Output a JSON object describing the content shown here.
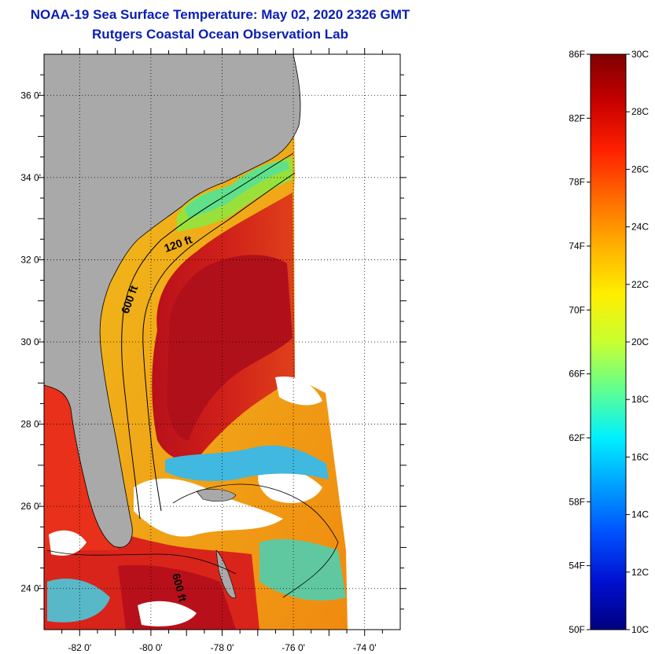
{
  "title": {
    "line1": "NOAA-19 Sea Surface Temperature:  May 02, 2020 2326 GMT",
    "line2": "Rutgers Coastal Ocean Observation Lab"
  },
  "map": {
    "longitude_labels": [
      "-82 0'",
      "-80 0'",
      "-78 0'",
      "-76 0'",
      "-74 0'"
    ],
    "latitude_labels": [
      "36 0'",
      "34 0'",
      "32 0'",
      "30 0'",
      "28 0'",
      "26 0'",
      "24 0'"
    ],
    "longitude_values": [
      -82,
      -80,
      -78,
      -76,
      -74
    ],
    "latitude_values": [
      36,
      34,
      32,
      30,
      28,
      26,
      24
    ],
    "lon_range": [
      -83,
      -73
    ],
    "lat_range": [
      23,
      37
    ],
    "contour_labels": [
      {
        "text": "120 ft",
        "lon": -79.2,
        "lat": 32.3,
        "rotate": -20
      },
      {
        "text": "600 ft",
        "lon": -80.5,
        "lat": 31.0,
        "rotate": -70
      },
      {
        "text": "600 ft",
        "lon": -79.3,
        "lat": 24.0,
        "rotate": 75
      }
    ],
    "colors": {
      "land": "#a9a9a9",
      "no_data": "#ffffff",
      "gulf_stream": "#c8141e",
      "shelf_warm": "#f0a818"
    }
  },
  "colorbar": {
    "fahrenheit_labels": [
      "86F",
      "82F",
      "78F",
      "74F",
      "70F",
      "66F",
      "62F",
      "58F",
      "54F",
      "50F"
    ],
    "celsius_labels": [
      "30C",
      "28C",
      "26C",
      "24C",
      "22C",
      "20C",
      "18C",
      "16C",
      "14C",
      "12C",
      "10C"
    ],
    "fahrenheit_range": [
      50,
      86
    ],
    "celsius_range": [
      10,
      30
    ],
    "gradient": [
      "#800000",
      "#c80000",
      "#ff2000",
      "#ff6a00",
      "#ffb000",
      "#ffee00",
      "#c8ff30",
      "#60ff90",
      "#00f0ff",
      "#00a0ff",
      "#0050ff",
      "#0010d0",
      "#000080"
    ]
  }
}
